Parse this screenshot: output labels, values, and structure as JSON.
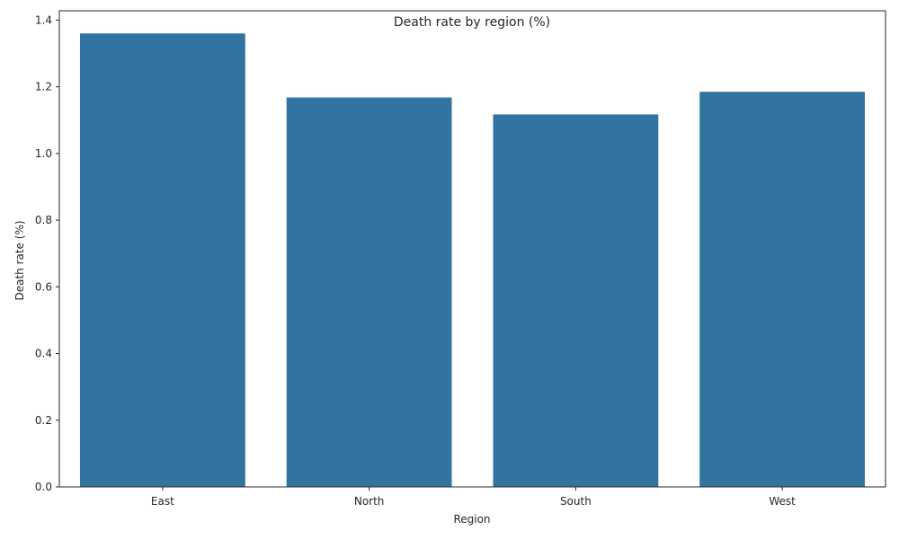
{
  "chart_data": {
    "type": "bar",
    "title": "Death rate by region (%)",
    "xlabel": "Region",
    "ylabel": "Death rate (%)",
    "categories": [
      "East",
      "North",
      "South",
      "West"
    ],
    "values": [
      1.36,
      1.168,
      1.117,
      1.185
    ],
    "ylim": [
      0,
      1.428
    ],
    "yticks": [
      "0.0",
      "0.2",
      "0.4",
      "0.6",
      "0.8",
      "1.0",
      "1.2",
      "1.4"
    ],
    "grid": false,
    "legend": "none",
    "bar_color": "#3274a1"
  }
}
